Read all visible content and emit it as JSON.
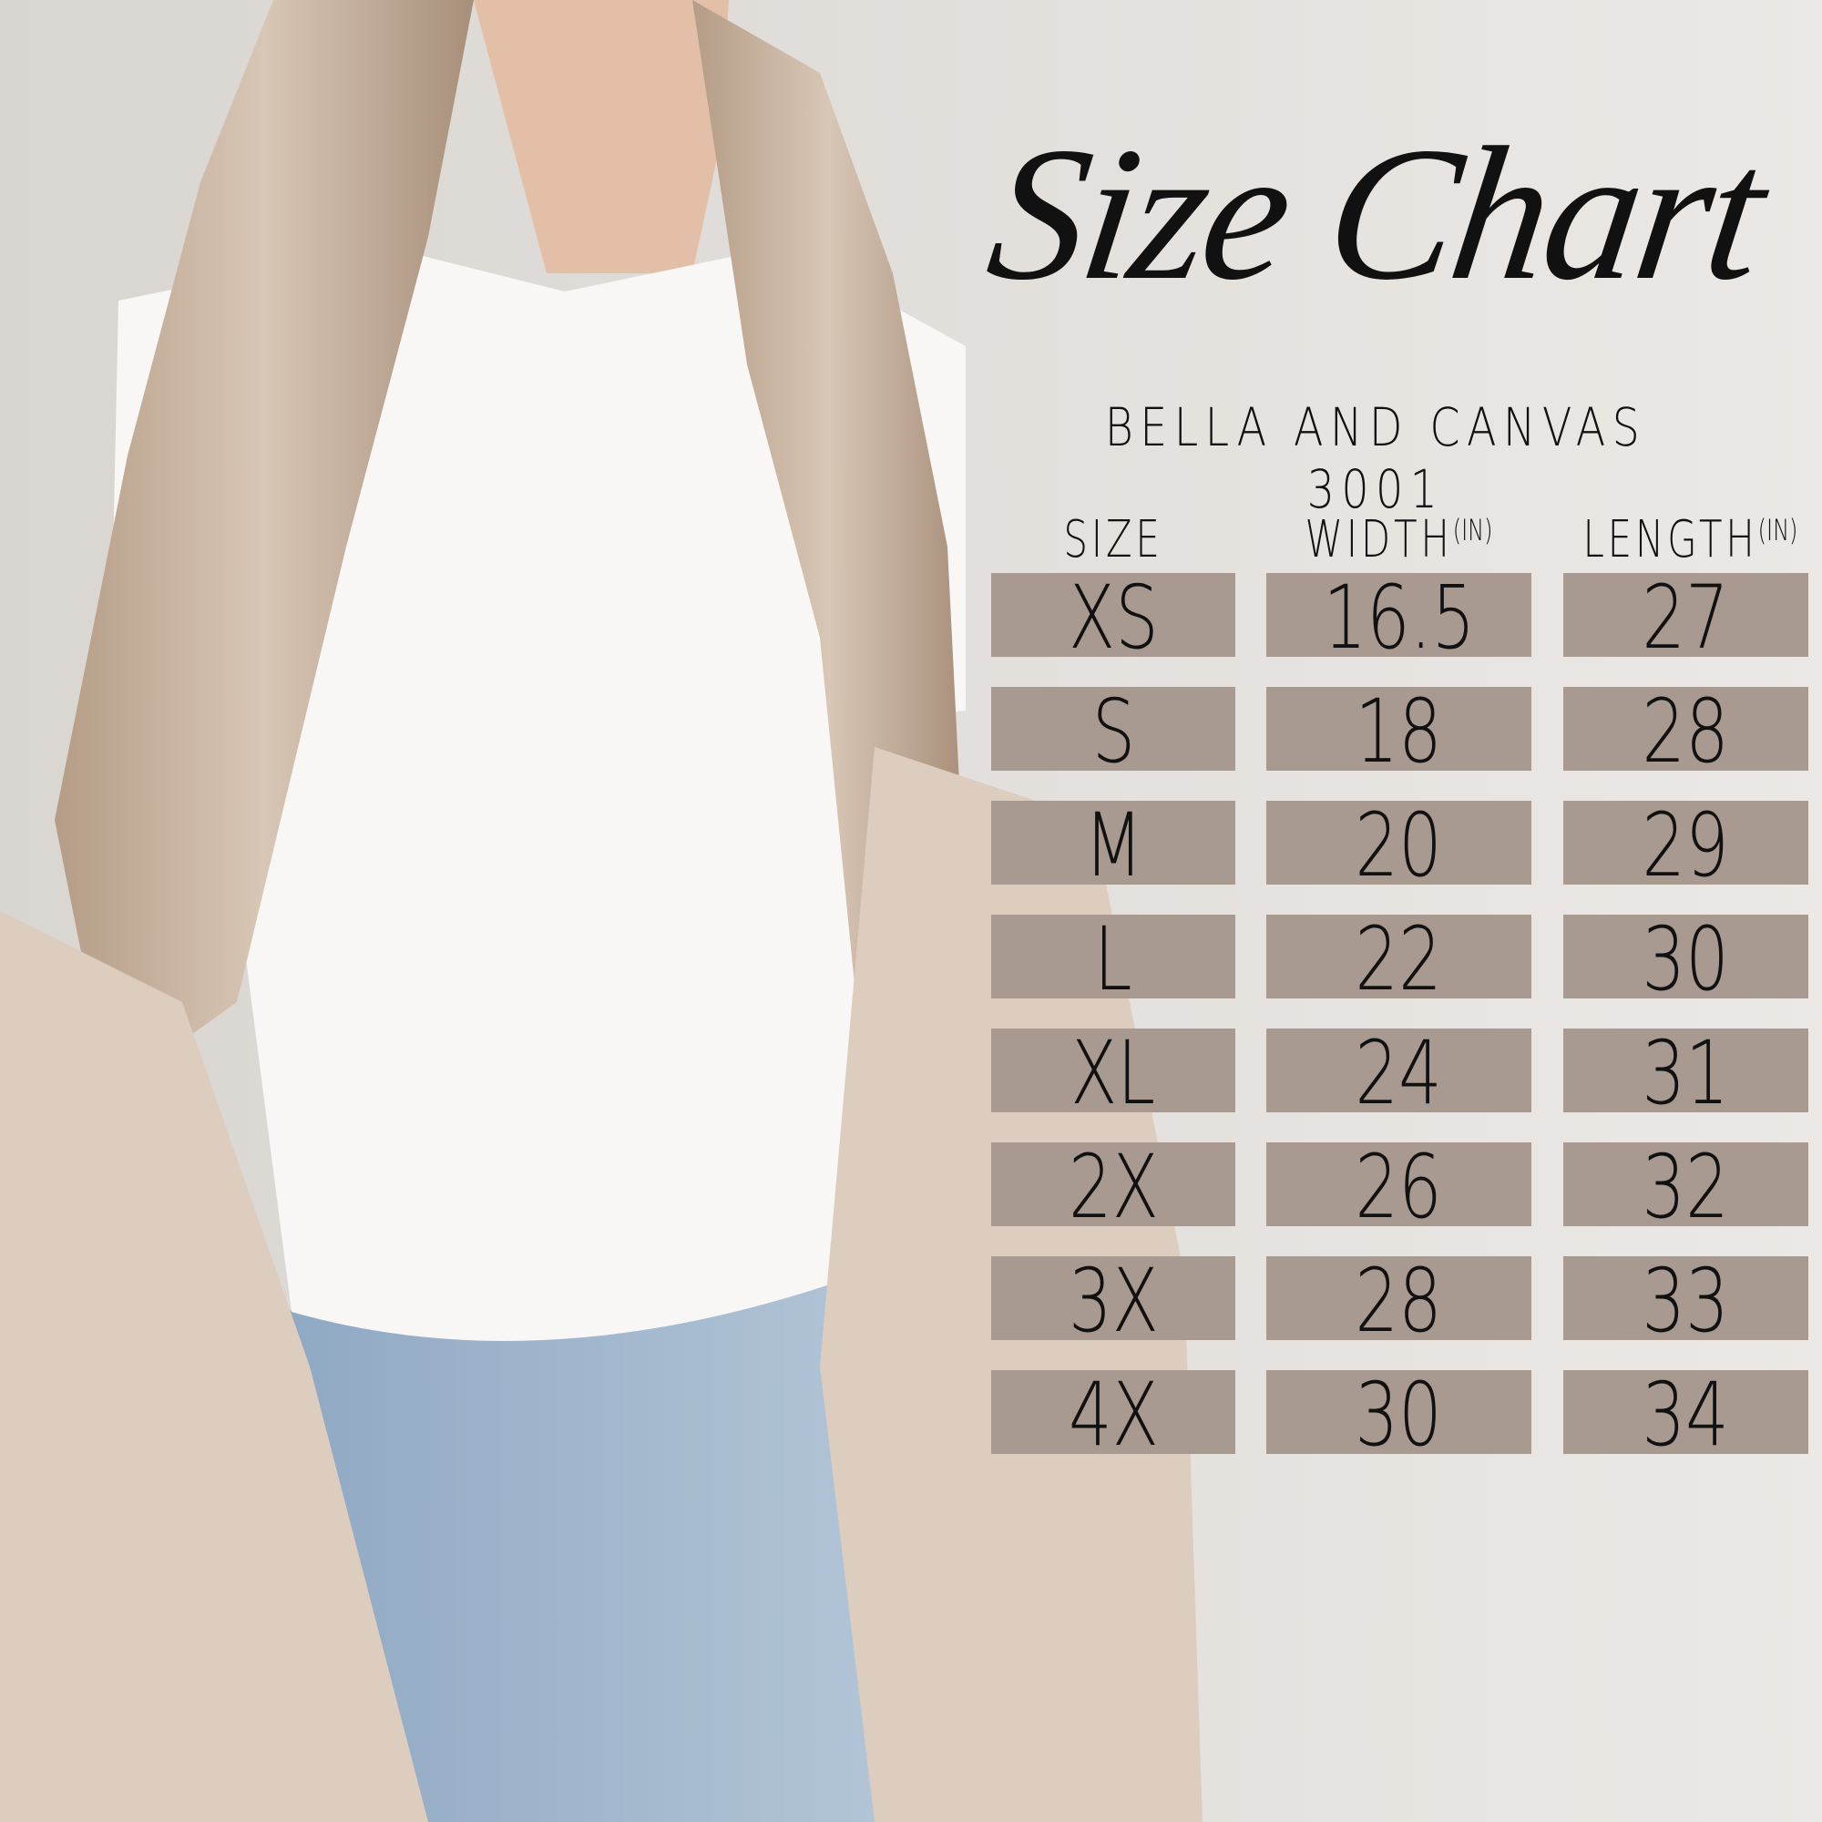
{
  "title": "Size Chart",
  "subtitle": "BELLA AND CANVAS 3001",
  "colors": {
    "background": "#e9e6e3",
    "cell": "#a89a90",
    "text": "#111111"
  },
  "table": {
    "headers": [
      {
        "label": "SIZE",
        "unit": ""
      },
      {
        "label": "WIDTH",
        "unit": "(IN)"
      },
      {
        "label": "LENGTH",
        "unit": "(IN)"
      }
    ],
    "rows": [
      {
        "size": "XS",
        "width": "16.5",
        "length": "27"
      },
      {
        "size": "S",
        "width": "18",
        "length": "28"
      },
      {
        "size": "M",
        "width": "20",
        "length": "29"
      },
      {
        "size": "L",
        "width": "22",
        "length": "30"
      },
      {
        "size": "XL",
        "width": "24",
        "length": "31"
      },
      {
        "size": "2X",
        "width": "26",
        "length": "32"
      },
      {
        "size": "3X",
        "width": "28",
        "length": "33"
      },
      {
        "size": "4X",
        "width": "30",
        "length": "34"
      }
    ]
  }
}
